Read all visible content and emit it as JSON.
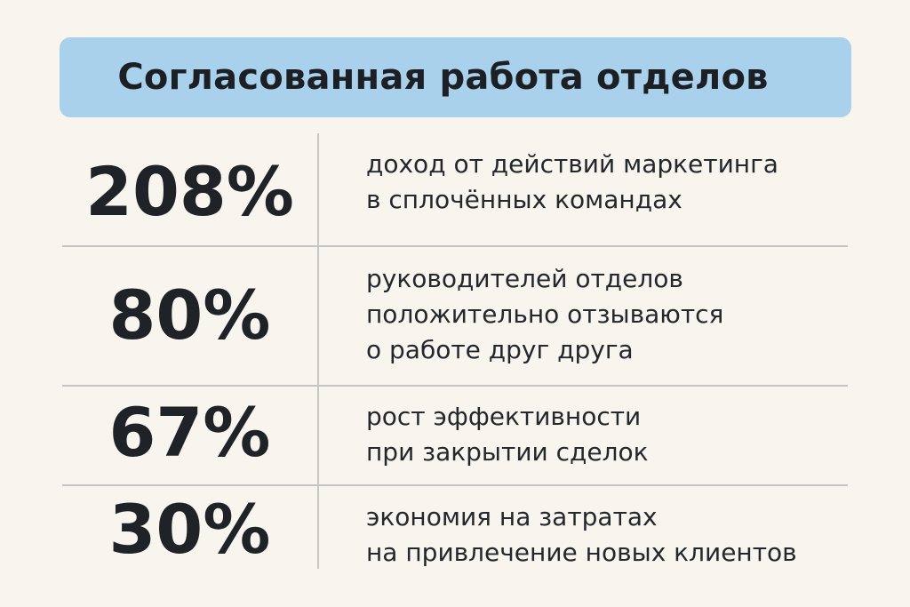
{
  "title": "Согласованная работа отделов",
  "colors": {
    "background": "#f7f5ee",
    "banner": "#a9d1ec",
    "text": "#1f2327",
    "divider": "#c4c4c4"
  },
  "stats": [
    {
      "value": "208%",
      "lines": [
        "доход от действий маркетинга",
        "в сплочённых командах"
      ]
    },
    {
      "value": "80%",
      "lines": [
        "руководителей отделов",
        "положительно отзываются",
        "о работе друг друга"
      ]
    },
    {
      "value": "67%",
      "lines": [
        "рост эффективности",
        "при закрытии сделок"
      ]
    },
    {
      "value": "30%",
      "lines": [
        "экономия на затратах",
        "на привлечение новых клиентов"
      ]
    }
  ]
}
